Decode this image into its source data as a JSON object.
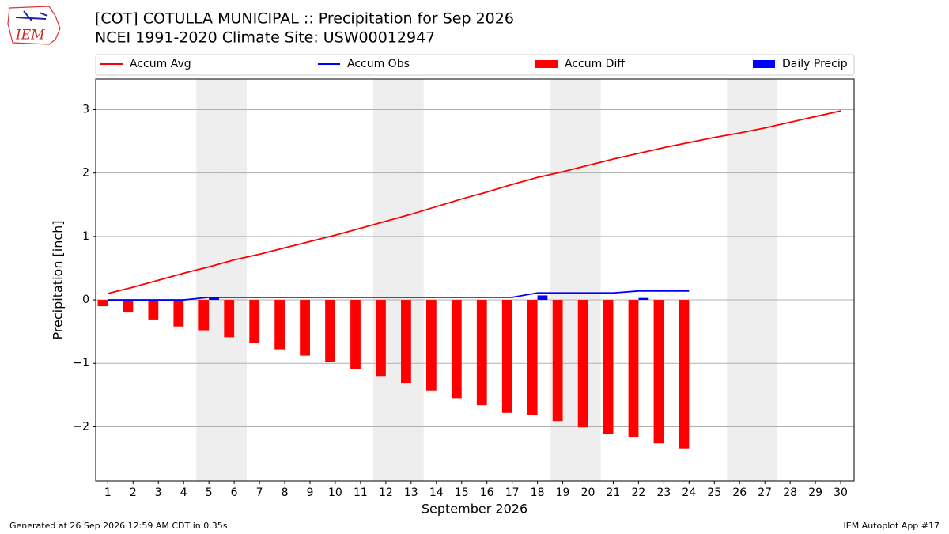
{
  "logo_text": "IEM",
  "footer_left": "Generated at 26 Sep 2026 12:59 AM CDT in 0.35s",
  "footer_right": "IEM Autoplot App #17",
  "chart_data": {
    "type": "bar",
    "title": "[COT] COTULLA MUNICIPAL :: Precipitation for Sep 2026",
    "subtitle": "NCEI 1991-2020 Climate Site: USW00012947",
    "xlabel": "September 2026",
    "ylabel": "Precipitation [inch]",
    "x": [
      1,
      2,
      3,
      4,
      5,
      6,
      7,
      8,
      9,
      10,
      11,
      12,
      13,
      14,
      15,
      16,
      17,
      18,
      19,
      20,
      21,
      22,
      23,
      24,
      25,
      26,
      27,
      28,
      29,
      30
    ],
    "xlim": [
      0.52,
      30.53
    ],
    "xticks": [
      1,
      2,
      3,
      4,
      5,
      6,
      7,
      8,
      9,
      10,
      11,
      12,
      13,
      14,
      15,
      16,
      17,
      18,
      19,
      20,
      21,
      22,
      23,
      24,
      25,
      26,
      27,
      28,
      29,
      30
    ],
    "ylim": [
      -2.855,
      3.48
    ],
    "yticks": [
      {
        "value": -2,
        "label": "−2"
      },
      {
        "value": -1,
        "label": "−1"
      },
      0,
      1,
      2,
      3
    ],
    "grid": true,
    "shaded_days": [
      5,
      6,
      12,
      13,
      19,
      20,
      26,
      27
    ],
    "legend": "top",
    "series": [
      {
        "name": "Accum Avg",
        "type": "line",
        "color": "#ff0000",
        "values": [
          0.1,
          0.2,
          0.31,
          0.42,
          0.52,
          0.63,
          0.72,
          0.82,
          0.92,
          1.02,
          1.13,
          1.24,
          1.35,
          1.47,
          1.59,
          1.7,
          1.82,
          1.93,
          2.02,
          2.12,
          2.22,
          2.31,
          2.4,
          2.48,
          2.56,
          2.63,
          2.71,
          2.8,
          2.89,
          2.98
        ]
      },
      {
        "name": "Accum Obs",
        "type": "line",
        "color": "#0000ff",
        "values": [
          0,
          0,
          0,
          0,
          0.04,
          0.04,
          0.04,
          0.04,
          0.04,
          0.04,
          0.04,
          0.04,
          0.04,
          0.04,
          0.04,
          0.04,
          0.04,
          0.11,
          0.11,
          0.11,
          0.11,
          0.14,
          0.14,
          0.14,
          null,
          null,
          null,
          null,
          null,
          null
        ]
      },
      {
        "name": "Accum Diff",
        "type": "bar",
        "color": "#ff0000",
        "values": [
          -0.1,
          -0.2,
          -0.31,
          -0.42,
          -0.48,
          -0.59,
          -0.68,
          -0.78,
          -0.88,
          -0.98,
          -1.09,
          -1.2,
          -1.31,
          -1.43,
          -1.55,
          -1.66,
          -1.78,
          -1.82,
          -1.91,
          -2.01,
          -2.11,
          -2.17,
          -2.26,
          -2.34,
          null,
          null,
          null,
          null,
          null,
          null
        ]
      },
      {
        "name": "Daily Precip",
        "type": "bar",
        "color": "#0000ff",
        "values": [
          0,
          0,
          0,
          0,
          0.04,
          0,
          0,
          0,
          0,
          0,
          0,
          0,
          0,
          0,
          0,
          0,
          0,
          0.07,
          0,
          0,
          0,
          0.03,
          0,
          0,
          null,
          null,
          null,
          null,
          null,
          null
        ]
      }
    ]
  }
}
